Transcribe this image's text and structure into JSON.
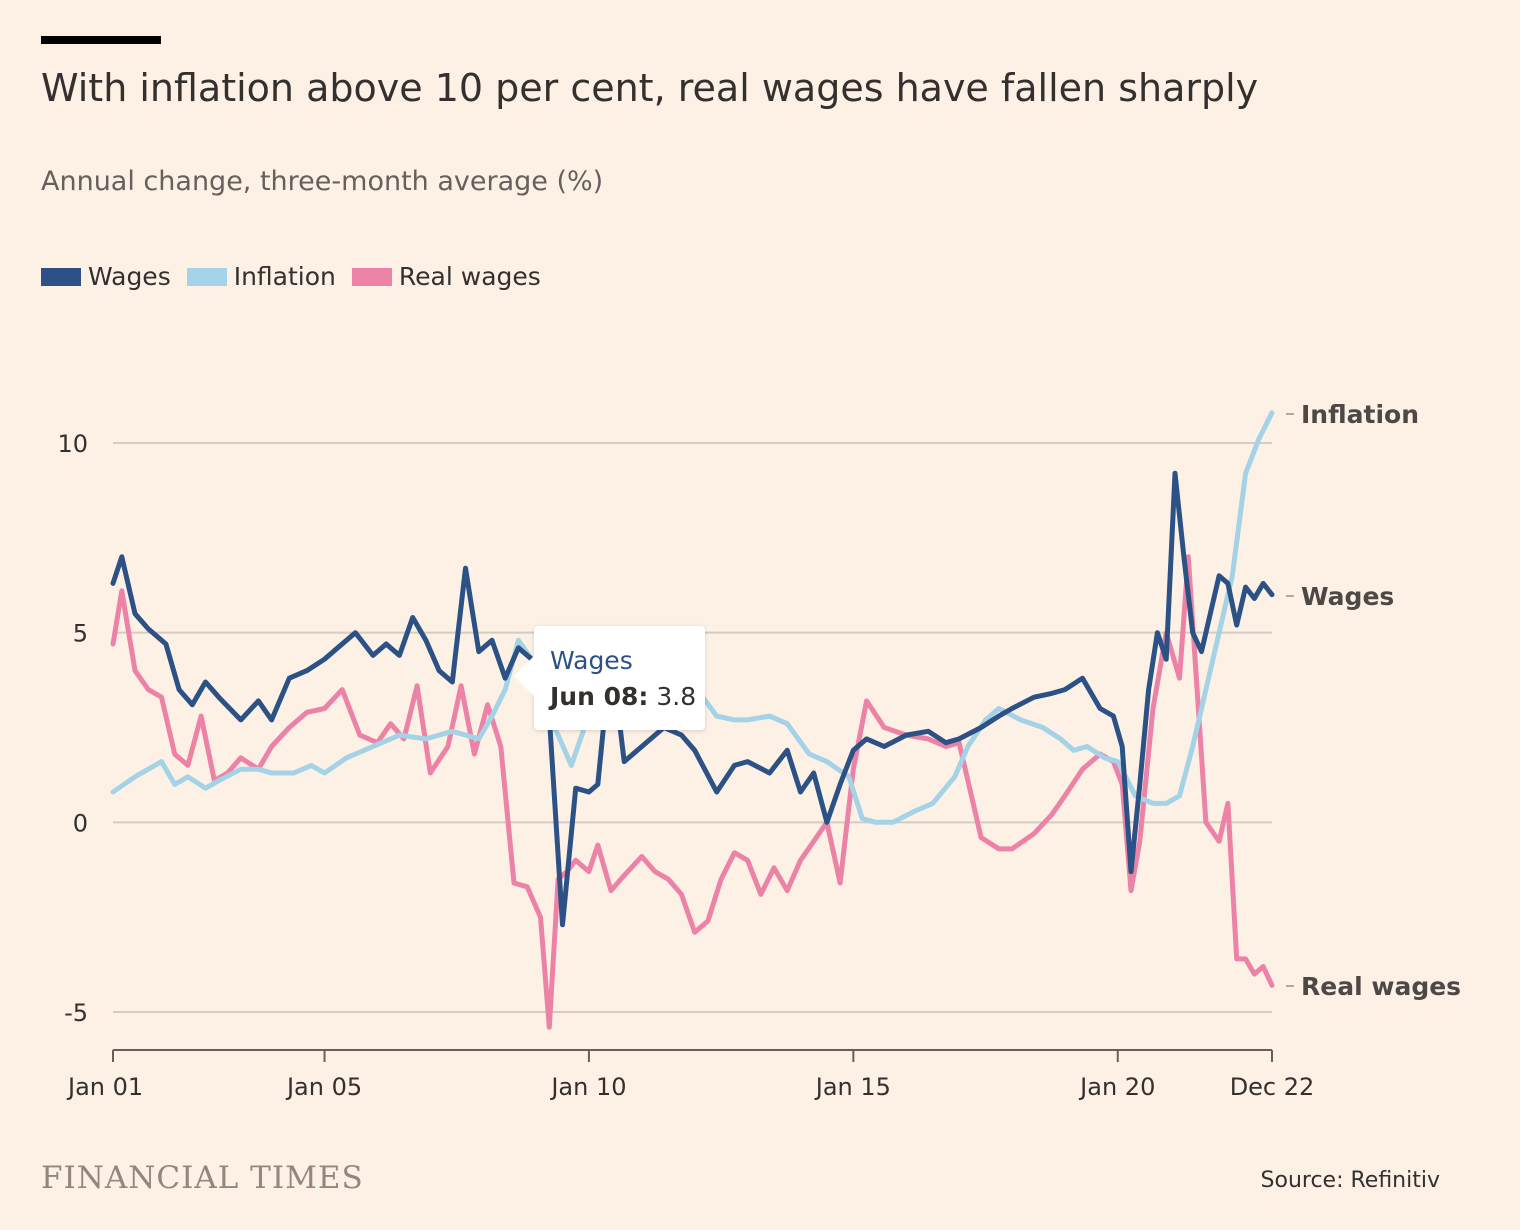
{
  "header": {
    "title": "With inflation above 10 per cent, real wages have fallen sharply",
    "subtitle": "Annual change, three-month average (%)"
  },
  "colors": {
    "background": "#fdf1e6",
    "wages": "#2c5185",
    "inflation": "#a4d2e6",
    "real_wages": "#ec82a6",
    "grid": "#d4cbc3",
    "text": "#33302e"
  },
  "tooltip": {
    "series": "Wages",
    "date": "Jun 08:",
    "value": "3.8"
  },
  "footer": {
    "logo": "FINANCIAL TIMES",
    "source": "Source: Refinitiv"
  },
  "chart_data": {
    "type": "line",
    "title": "With inflation above 10 per cent, real wages have fallen sharply",
    "subtitle": "Annual change, three-month average (%)",
    "xlabel": "",
    "ylabel": "",
    "x_range": [
      "2001-01",
      "2022-12"
    ],
    "ylim": [
      -6,
      11
    ],
    "y_ticks": [
      10,
      5,
      0,
      -5
    ],
    "x_ticks": [
      {
        "label": "Jan 01",
        "x": "2001-01"
      },
      {
        "label": "Jan 05",
        "x": "2005-01"
      },
      {
        "label": "Jan 10",
        "x": "2010-01"
      },
      {
        "label": "Jan 15",
        "x": "2015-01"
      },
      {
        "label": "Jan 20",
        "x": "2020-01"
      },
      {
        "label": "Dec 22",
        "x": "2022-12"
      }
    ],
    "grid": true,
    "legend": "top-left",
    "end_labels": [
      "Inflation",
      "Wages",
      "Real wages"
    ],
    "series": [
      {
        "name": "Wages",
        "x": [
          "2001-01",
          "2001-03",
          "2001-06",
          "2001-09",
          "2002-01",
          "2002-04",
          "2002-07",
          "2002-10",
          "2003-01",
          "2003-06",
          "2003-10",
          "2004-01",
          "2004-05",
          "2004-09",
          "2005-01",
          "2005-04",
          "2005-08",
          "2005-12",
          "2006-03",
          "2006-06",
          "2006-09",
          "2006-12",
          "2007-03",
          "2007-06",
          "2007-09",
          "2007-12",
          "2008-03",
          "2008-06",
          "2008-09",
          "2008-12",
          "2009-02",
          "2009-04",
          "2009-07",
          "2009-10",
          "2010-01",
          "2010-03",
          "2010-06",
          "2010-09",
          "2011-01",
          "2011-06",
          "2011-10",
          "2012-01",
          "2012-06",
          "2012-10",
          "2013-01",
          "2013-06",
          "2013-10",
          "2014-01",
          "2014-04",
          "2014-07",
          "2014-10",
          "2015-01",
          "2015-04",
          "2015-08",
          "2016-01",
          "2016-06",
          "2016-10",
          "2017-01",
          "2017-06",
          "2017-10",
          "2018-01",
          "2018-06",
          "2018-10",
          "2019-01",
          "2019-05",
          "2019-09",
          "2019-12",
          "2020-02",
          "2020-04",
          "2020-06",
          "2020-08",
          "2020-10",
          "2020-12",
          "2021-02",
          "2021-04",
          "2021-06",
          "2021-08",
          "2021-10",
          "2021-12",
          "2022-02",
          "2022-04",
          "2022-06",
          "2022-08",
          "2022-10",
          "2022-12"
        ],
        "values": [
          6.3,
          7.0,
          5.5,
          5.1,
          4.7,
          3.5,
          3.1,
          3.7,
          3.3,
          2.7,
          3.2,
          2.7,
          3.8,
          4.0,
          4.3,
          4.6,
          5.0,
          4.4,
          4.7,
          4.4,
          5.4,
          4.8,
          4.0,
          3.7,
          6.7,
          4.5,
          4.8,
          3.8,
          4.6,
          4.3,
          3.0,
          2.8,
          -2.7,
          0.9,
          0.8,
          1.0,
          4.5,
          1.6,
          2.0,
          2.5,
          2.3,
          1.9,
          0.8,
          1.5,
          1.6,
          1.3,
          1.9,
          0.8,
          1.3,
          0.0,
          1.0,
          1.9,
          2.2,
          2.0,
          2.3,
          2.4,
          2.1,
          2.2,
          2.5,
          2.8,
          3.0,
          3.3,
          3.4,
          3.5,
          3.8,
          3.0,
          2.8,
          2.0,
          -1.3,
          1.0,
          3.5,
          5.0,
          4.3,
          9.2,
          7.0,
          5.0,
          4.5,
          5.5,
          6.5,
          6.3,
          5.2,
          6.2,
          5.9,
          6.3,
          6.0
        ]
      },
      {
        "name": "Inflation",
        "x": [
          "2001-01",
          "2001-06",
          "2001-12",
          "2002-03",
          "2002-06",
          "2002-10",
          "2003-01",
          "2003-06",
          "2003-10",
          "2004-01",
          "2004-06",
          "2004-10",
          "2005-01",
          "2005-06",
          "2005-12",
          "2006-06",
          "2006-12",
          "2007-06",
          "2007-12",
          "2008-03",
          "2008-06",
          "2008-09",
          "2008-12",
          "2009-03",
          "2009-06",
          "2009-09",
          "2009-12",
          "2010-03",
          "2010-06",
          "2010-09",
          "2011-01",
          "2011-06",
          "2011-10",
          "2012-01",
          "2012-06",
          "2012-10",
          "2013-01",
          "2013-06",
          "2013-10",
          "2014-03",
          "2014-07",
          "2014-12",
          "2015-03",
          "2015-06",
          "2015-10",
          "2016-03",
          "2016-07",
          "2016-12",
          "2017-03",
          "2017-07",
          "2017-10",
          "2018-03",
          "2018-08",
          "2018-12",
          "2019-03",
          "2019-06",
          "2019-10",
          "2020-01",
          "2020-05",
          "2020-09",
          "2020-12",
          "2021-03",
          "2021-06",
          "2021-09",
          "2021-12",
          "2022-03",
          "2022-06",
          "2022-09",
          "2022-12"
        ],
        "values": [
          0.8,
          1.2,
          1.6,
          1.0,
          1.2,
          0.9,
          1.1,
          1.4,
          1.4,
          1.3,
          1.3,
          1.5,
          1.3,
          1.7,
          2.0,
          2.3,
          2.2,
          2.4,
          2.2,
          2.8,
          3.5,
          4.8,
          4.3,
          3.0,
          2.3,
          1.5,
          2.5,
          3.4,
          3.3,
          3.2,
          4.0,
          4.5,
          5.0,
          3.6,
          2.8,
          2.7,
          2.7,
          2.8,
          2.6,
          1.8,
          1.6,
          1.2,
          0.1,
          0.0,
          0.0,
          0.3,
          0.5,
          1.2,
          2.0,
          2.7,
          3.0,
          2.7,
          2.5,
          2.2,
          1.9,
          2.0,
          1.7,
          1.6,
          0.7,
          0.5,
          0.5,
          0.7,
          2.0,
          3.5,
          5.0,
          6.5,
          9.2,
          10.1,
          10.8
        ]
      },
      {
        "name": "Real wages",
        "x": [
          "2001-01",
          "2001-03",
          "2001-06",
          "2001-09",
          "2001-12",
          "2002-03",
          "2002-06",
          "2002-09",
          "2002-12",
          "2003-03",
          "2003-06",
          "2003-10",
          "2004-01",
          "2004-05",
          "2004-09",
          "2005-01",
          "2005-05",
          "2005-09",
          "2006-01",
          "2006-04",
          "2006-07",
          "2006-10",
          "2007-01",
          "2007-05",
          "2007-08",
          "2007-11",
          "2008-02",
          "2008-05",
          "2008-08",
          "2008-11",
          "2009-02",
          "2009-04",
          "2009-06",
          "2009-08",
          "2009-10",
          "2010-01",
          "2010-03",
          "2010-06",
          "2010-09",
          "2011-01",
          "2011-04",
          "2011-07",
          "2011-10",
          "2012-01",
          "2012-04",
          "2012-07",
          "2012-10",
          "2013-01",
          "2013-04",
          "2013-07",
          "2013-10",
          "2014-01",
          "2014-04",
          "2014-07",
          "2014-10",
          "2015-01",
          "2015-04",
          "2015-08",
          "2016-01",
          "2016-06",
          "2016-10",
          "2017-01",
          "2017-06",
          "2017-10",
          "2018-01",
          "2018-06",
          "2018-10",
          "2019-01",
          "2019-05",
          "2019-09",
          "2019-12",
          "2020-02",
          "2020-04",
          "2020-06",
          "2020-09",
          "2020-12",
          "2021-03",
          "2021-05",
          "2021-07",
          "2021-09",
          "2021-12",
          "2022-02",
          "2022-04",
          "2022-06",
          "2022-08",
          "2022-10",
          "2022-12"
        ],
        "values": [
          4.7,
          6.1,
          4.0,
          3.5,
          3.3,
          1.8,
          1.5,
          2.8,
          1.1,
          1.3,
          1.7,
          1.4,
          2.0,
          2.5,
          2.9,
          3.0,
          3.5,
          2.3,
          2.1,
          2.6,
          2.2,
          3.6,
          1.3,
          2.0,
          3.6,
          1.8,
          3.1,
          2.0,
          -1.6,
          -1.7,
          -2.5,
          -5.4,
          -1.5,
          -1.3,
          -1.0,
          -1.3,
          -0.6,
          -1.8,
          -1.4,
          -0.9,
          -1.3,
          -1.5,
          -1.9,
          -2.9,
          -2.6,
          -1.5,
          -0.8,
          -1.0,
          -1.9,
          -1.2,
          -1.8,
          -1.0,
          -0.5,
          0.0,
          -1.6,
          1.4,
          3.2,
          2.5,
          2.3,
          2.2,
          2.0,
          2.1,
          -0.4,
          -0.7,
          -0.7,
          -0.3,
          0.2,
          0.7,
          1.4,
          1.8,
          1.6,
          1.0,
          -1.8,
          -0.5,
          3.0,
          5.0,
          3.8,
          7.0,
          3.5,
          0.0,
          -0.5,
          0.5,
          -3.6,
          -3.6,
          -4.0,
          -3.8,
          -4.3
        ]
      }
    ]
  }
}
